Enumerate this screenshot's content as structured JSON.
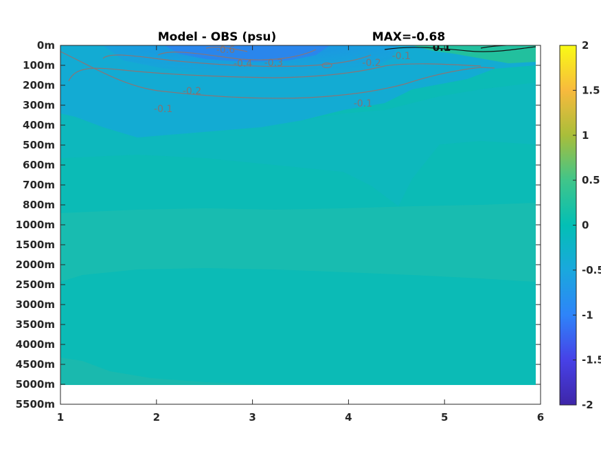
{
  "chart_data": {
    "type": "heatmap",
    "title": "Model - OBS (psu)",
    "max_text": "MAX=-0.68",
    "x_ticks": [
      "1",
      "2",
      "3",
      "4",
      "5",
      "6"
    ],
    "xlim": [
      1,
      6
    ],
    "y_ticks": [
      "0m",
      "100m",
      "200m",
      "300m",
      "400m",
      "500m",
      "600m",
      "700m",
      "800m",
      "1000m",
      "1500m",
      "2000m",
      "2500m",
      "3000m",
      "3500m",
      "4000m",
      "4500m",
      "5000m",
      "5500m"
    ],
    "data_bottom_depth": "5000m",
    "colorbar": {
      "ticks": [
        "2",
        "1.5",
        "1",
        "0.5",
        "0",
        "-0.5",
        "-1",
        "-1.5",
        "-2"
      ],
      "range": [
        -2,
        2
      ],
      "colormap": "parula"
    },
    "contour_labels": [
      {
        "text": "-0.6",
        "x": 2.72,
        "y_depth": "0m"
      },
      {
        "text": "-0.4",
        "x": 2.9,
        "y_depth": "100m"
      },
      {
        "text": "-0.3",
        "x": 3.22,
        "y_depth": "100m"
      },
      {
        "text": "-0.2",
        "x": 2.37,
        "y_depth": "200m"
      },
      {
        "text": "-0.2",
        "x": 4.24,
        "y_depth": "100m"
      },
      {
        "text": "-0.1",
        "x": 4.55,
        "y_depth": "100m"
      },
      {
        "text": "-0.1",
        "x": 2.07,
        "y_depth": "300m"
      },
      {
        "text": "-0.1",
        "x": 4.15,
        "y_depth": "300m"
      },
      {
        "text": "0.1",
        "x": 4.97,
        "y_depth": "0m"
      }
    ],
    "grid": false
  }
}
